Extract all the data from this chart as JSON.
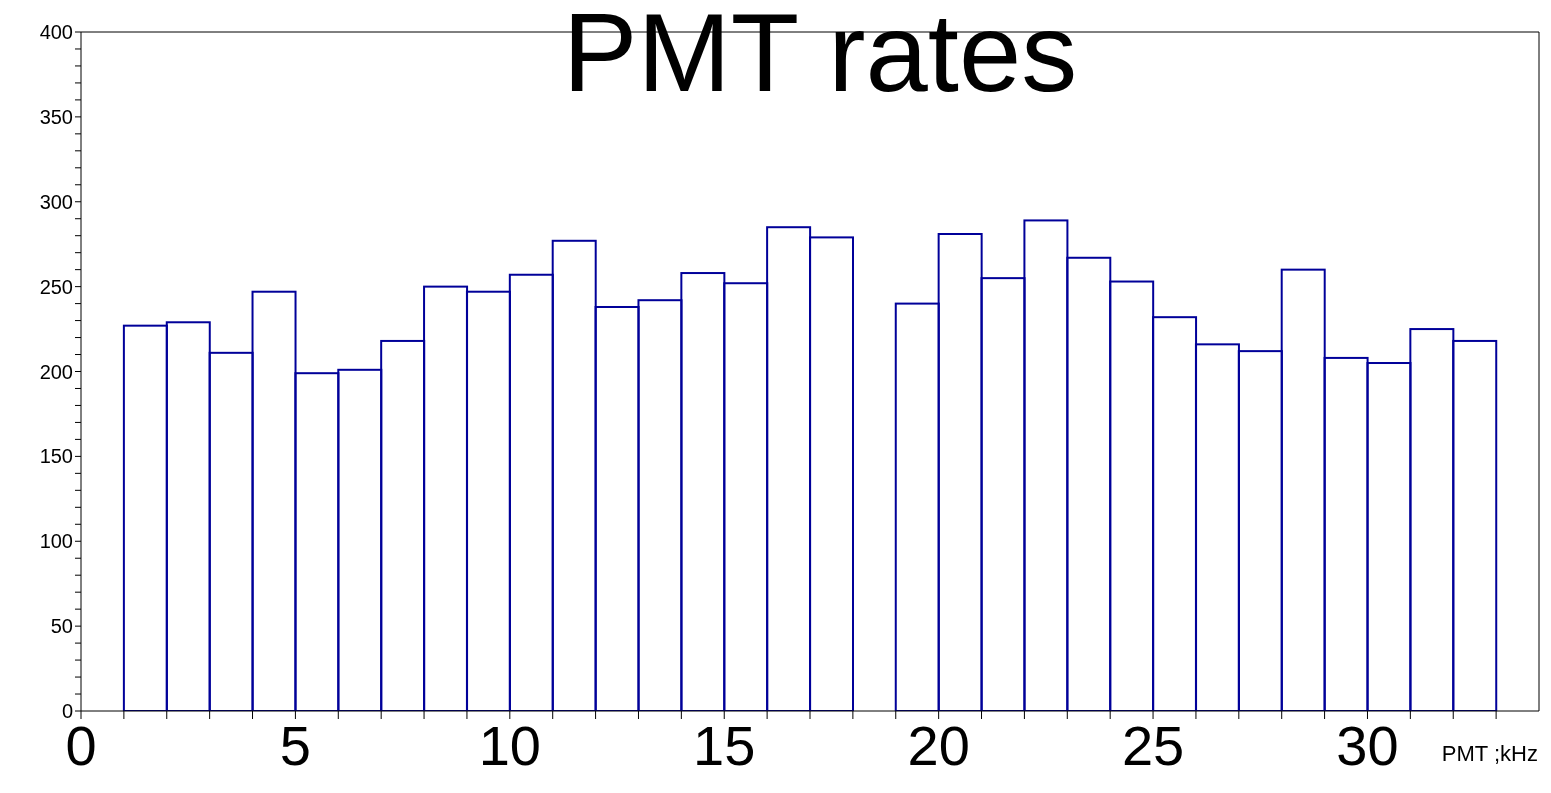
{
  "chart_data": {
    "type": "histogram",
    "title": "PMT rates",
    "xlabel": "PMT ;kHz",
    "bins": [
      0,
      1,
      2,
      3,
      4,
      5,
      6,
      7,
      8,
      9,
      10,
      11,
      12,
      13,
      14,
      15,
      16,
      17,
      18,
      19,
      20,
      21,
      22,
      23,
      24,
      25,
      26,
      27,
      28,
      29,
      30,
      31,
      32,
      33,
      34
    ],
    "values": [
      0,
      227,
      229,
      211,
      247,
      199,
      201,
      218,
      250,
      247,
      257,
      277,
      238,
      242,
      258,
      252,
      285,
      279,
      0,
      240,
      281,
      255,
      289,
      267,
      253,
      232,
      216,
      212,
      260,
      208,
      205,
      225,
      218,
      0
    ],
    "color": "#000099",
    "xlim": [
      0,
      34
    ],
    "xticks": [
      0,
      {
        "value": 1,
        "label": null
      },
      {
        "value": 2,
        "label": null
      },
      {
        "value": 3,
        "label": null
      },
      {
        "value": 4,
        "label": null
      },
      5,
      {
        "value": 6,
        "label": null
      },
      {
        "value": 7,
        "label": null
      },
      {
        "value": 8,
        "label": null
      },
      {
        "value": 9,
        "label": null
      },
      10,
      {
        "value": 11,
        "label": null
      },
      {
        "value": 12,
        "label": null
      },
      {
        "value": 13,
        "label": null
      },
      {
        "value": 14,
        "label": null
      },
      15,
      {
        "value": 16,
        "label": null
      },
      {
        "value": 17,
        "label": null
      },
      {
        "value": 18,
        "label": null
      },
      {
        "value": 19,
        "label": null
      },
      20,
      {
        "value": 21,
        "label": null
      },
      {
        "value": 22,
        "label": null
      },
      {
        "value": 23,
        "label": null
      },
      {
        "value": 24,
        "label": null
      },
      25,
      {
        "value": 26,
        "label": null
      },
      {
        "value": 27,
        "label": null
      },
      {
        "value": 28,
        "label": null
      },
      {
        "value": 29,
        "label": null
      },
      30,
      {
        "value": 31,
        "label": null
      },
      {
        "value": 32,
        "label": null
      },
      {
        "value": 33,
        "label": null
      }
    ],
    "ylim": [
      0,
      400
    ],
    "yticks": [
      0,
      {
        "value": 10,
        "label": null
      },
      {
        "value": 20,
        "label": null
      },
      {
        "value": 30,
        "label": null
      },
      {
        "value": 40,
        "label": null
      },
      50,
      {
        "value": 60,
        "label": null
      },
      {
        "value": 70,
        "label": null
      },
      {
        "value": 80,
        "label": null
      },
      {
        "value": 90,
        "label": null
      },
      100,
      {
        "value": 110,
        "label": null
      },
      {
        "value": 120,
        "label": null
      },
      {
        "value": 130,
        "label": null
      },
      {
        "value": 140,
        "label": null
      },
      150,
      {
        "value": 160,
        "label": null
      },
      {
        "value": 170,
        "label": null
      },
      {
        "value": 180,
        "label": null
      },
      {
        "value": 190,
        "label": null
      },
      200,
      {
        "value": 210,
        "label": null
      },
      {
        "value": 220,
        "label": null
      },
      {
        "value": 230,
        "label": null
      },
      {
        "value": 240,
        "label": null
      },
      250,
      {
        "value": 260,
        "label": null
      },
      {
        "value": 270,
        "label": null
      },
      {
        "value": 280,
        "label": null
      },
      {
        "value": 290,
        "label": null
      },
      300,
      {
        "value": 310,
        "label": null
      },
      {
        "value": 320,
        "label": null
      },
      {
        "value": 330,
        "label": null
      },
      {
        "value": 340,
        "label": null
      },
      350,
      {
        "value": 360,
        "label": null
      },
      {
        "value": 370,
        "label": null
      },
      {
        "value": 380,
        "label": null
      },
      {
        "value": 390,
        "label": null
      },
      400
    ],
    "grid": false,
    "legend": false
  }
}
